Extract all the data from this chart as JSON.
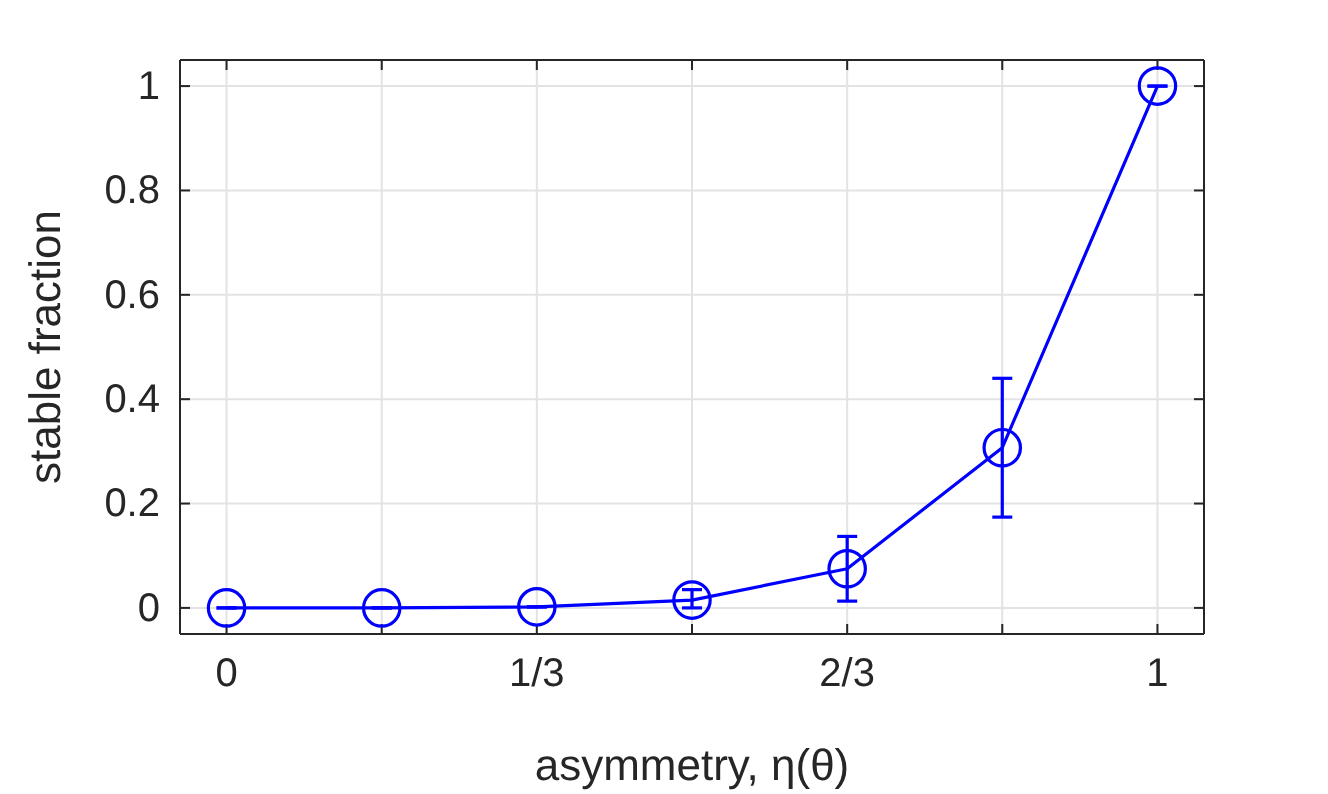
{
  "chart_data": {
    "type": "line",
    "xlabel": "asymmetry, η(θ)",
    "ylabel": "stable fraction",
    "x": [
      0,
      0.1667,
      0.3333,
      0.5,
      0.6667,
      0.8333,
      1
    ],
    "series": [
      {
        "color": "#0000ff",
        "values": [
          0,
          0,
          0.002,
          0.015,
          0.075,
          0.307,
          1
        ],
        "errors": [
          0,
          0,
          0,
          [
            0,
            0.035
          ],
          [
            0.013,
            0.137
          ],
          [
            0.174,
            0.44
          ],
          0
        ]
      }
    ],
    "xlim": [
      -0.05,
      1.05
    ],
    "ylim": [
      -0.05,
      1.05
    ],
    "xticks": [
      {
        "value": 0,
        "label": "0"
      },
      {
        "value": 0.1667,
        "label": null
      },
      {
        "value": 0.3333,
        "label": "1/3"
      },
      {
        "value": 0.5,
        "label": null
      },
      {
        "value": 0.6667,
        "label": "2/3"
      },
      {
        "value": 0.8333,
        "label": null
      },
      {
        "value": 1,
        "label": "1"
      }
    ],
    "yticks": [
      0,
      0.2,
      0.4,
      0.6,
      0.8,
      1
    ],
    "grid": true,
    "marker": "circle",
    "line_style": "solid"
  }
}
